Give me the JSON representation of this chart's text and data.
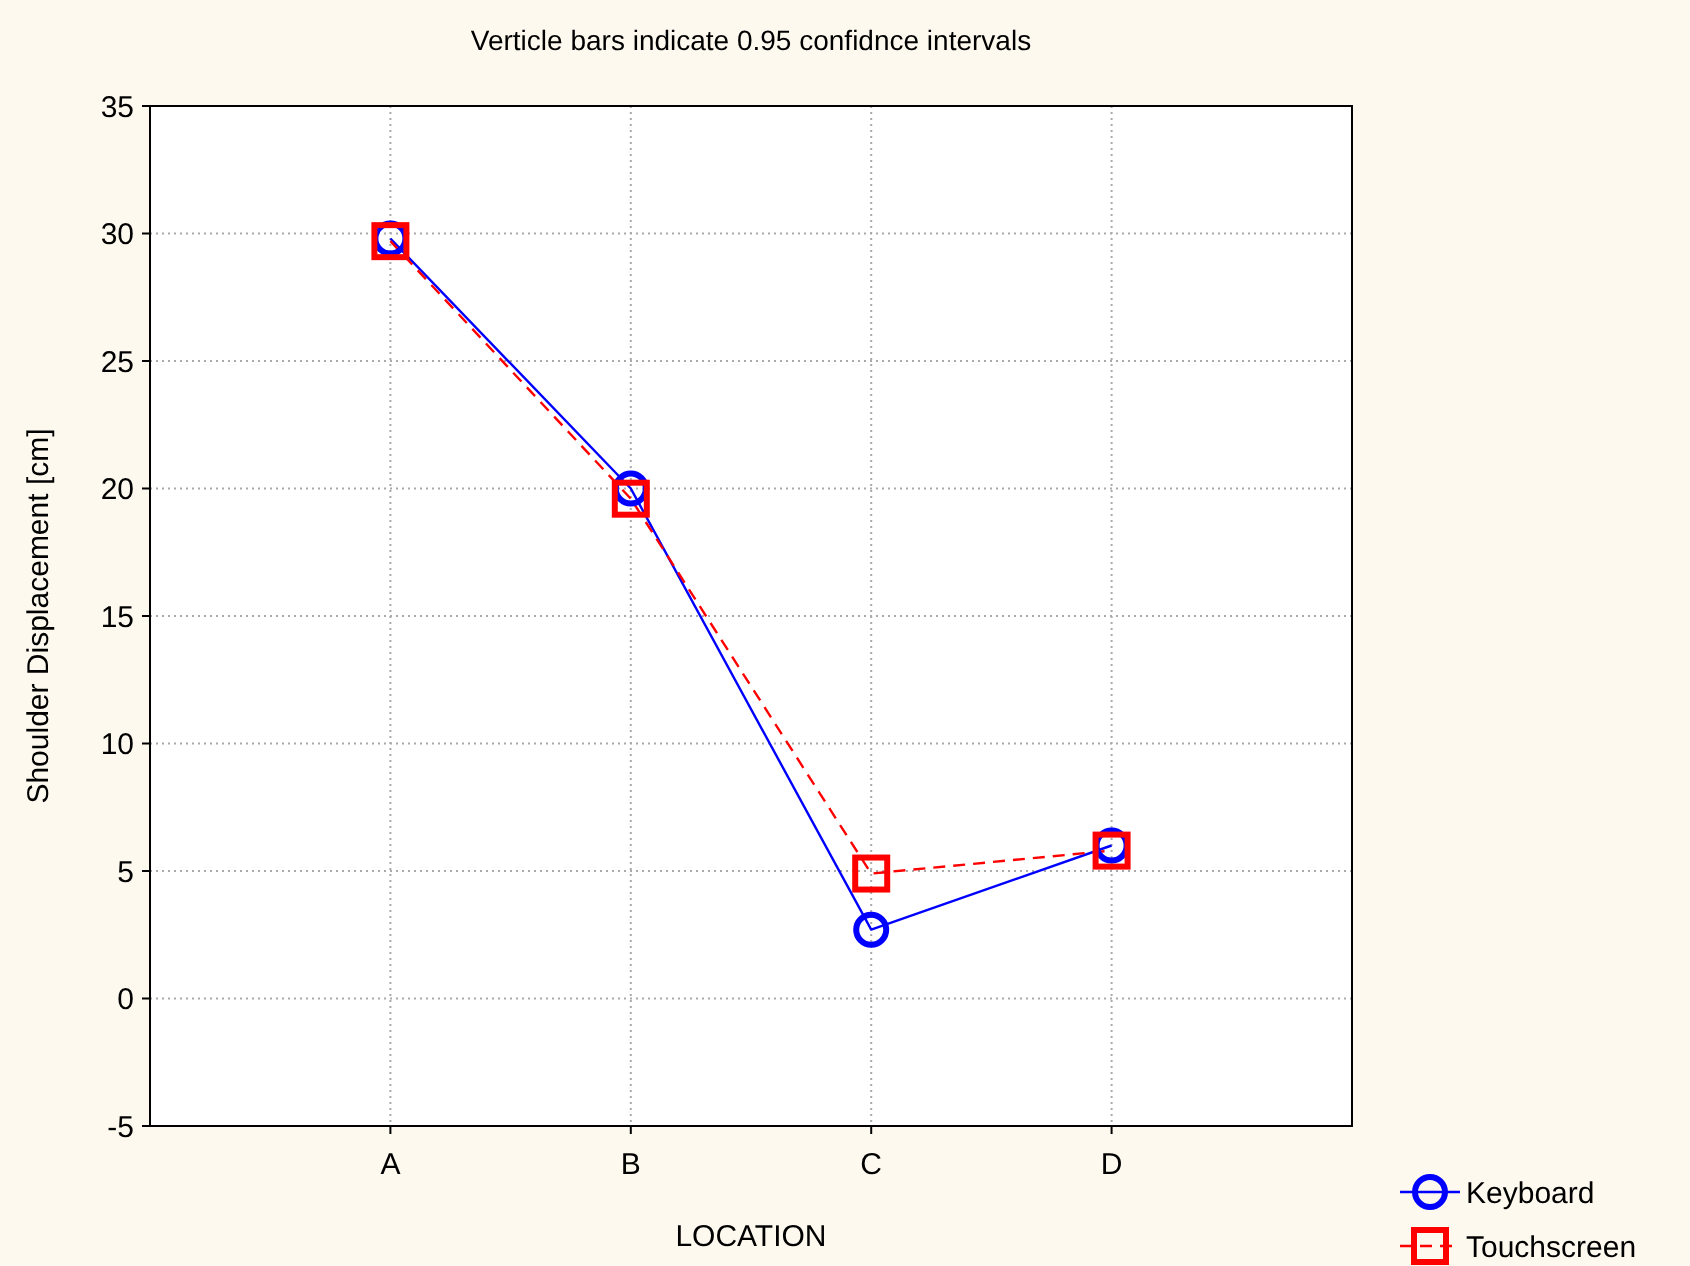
{
  "chart_data": {
    "type": "line",
    "title": "Verticle bars indicate 0.95 confidnce intervals",
    "xlabel": "LOCATION",
    "ylabel": "Shoulder Displacement [cm]",
    "categories": [
      "A",
      "B",
      "C",
      "D"
    ],
    "series": [
      {
        "name": "Keyboard",
        "color": "#0000ff",
        "values": [
          29.8,
          20.0,
          2.7,
          6.0
        ],
        "marker": "circle",
        "line_style": "solid"
      },
      {
        "name": "Touchscreen",
        "color": "#ff0000",
        "values": [
          29.7,
          19.6,
          4.9,
          5.8
        ],
        "marker": "square",
        "line_style": "dashed"
      }
    ],
    "ylim": [
      -5,
      35
    ],
    "yticks": [
      -5,
      0,
      5,
      10,
      15,
      20,
      25,
      30,
      35
    ],
    "grid": true,
    "legend": "bottom right"
  }
}
